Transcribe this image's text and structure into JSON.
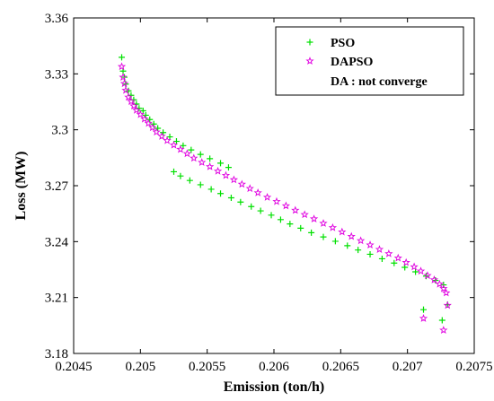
{
  "chart_data": {
    "type": "scatter",
    "xlabel": "Emission (ton/h)",
    "ylabel": "Loss (MW)",
    "xlim": [
      0.2045,
      0.2075
    ],
    "ylim": [
      3.18,
      3.36
    ],
    "xticks": [
      "0.2045",
      "0.205",
      "0.2055",
      "0.206",
      "0.2065",
      "0.207",
      "0.2075"
    ],
    "yticks": [
      "3.18",
      "3.21",
      "3.24",
      "3.27",
      "3.3",
      "3.33",
      "3.36"
    ],
    "grid": false,
    "legend_position": "top-right",
    "legend": [
      {
        "label": "PSO",
        "marker": "plus",
        "color": "#00e000"
      },
      {
        "label": "DAPSO",
        "marker": "star",
        "color": "#e000e0"
      },
      {
        "label": "DA : not converge",
        "marker": "none",
        "color": ""
      }
    ],
    "series": [
      {
        "name": "PSO",
        "marker": "plus",
        "color": "#00e000",
        "points": [
          [
            0.20486,
            3.3389
          ],
          [
            0.20487,
            3.3315
          ],
          [
            0.20488,
            3.3282
          ],
          [
            0.20489,
            3.3245
          ],
          [
            0.20491,
            3.3209
          ],
          [
            0.20493,
            3.3185
          ],
          [
            0.20495,
            3.3161
          ],
          [
            0.20497,
            3.3138
          ],
          [
            0.20499,
            3.3115
          ],
          [
            0.20502,
            3.3102
          ],
          [
            0.20504,
            3.3078
          ],
          [
            0.20507,
            3.3055
          ],
          [
            0.2051,
            3.3031
          ],
          [
            0.20513,
            3.3008
          ],
          [
            0.20517,
            3.2985
          ],
          [
            0.20522,
            3.2962
          ],
          [
            0.20527,
            3.2938
          ],
          [
            0.20532,
            3.2915
          ],
          [
            0.20538,
            3.2892
          ],
          [
            0.20545,
            3.2868
          ],
          [
            0.20552,
            3.2845
          ],
          [
            0.2056,
            3.2821
          ],
          [
            0.20566,
            3.2798
          ],
          [
            0.20525,
            3.2775
          ],
          [
            0.2053,
            3.2752
          ],
          [
            0.20537,
            3.2728
          ],
          [
            0.20545,
            3.2705
          ],
          [
            0.20553,
            3.2681
          ],
          [
            0.2056,
            3.2658
          ],
          [
            0.20568,
            3.2635
          ],
          [
            0.20575,
            3.2612
          ],
          [
            0.20583,
            3.2588
          ],
          [
            0.2059,
            3.2565
          ],
          [
            0.20598,
            3.2542
          ],
          [
            0.20605,
            3.2518
          ],
          [
            0.20612,
            3.2495
          ],
          [
            0.2062,
            3.2472
          ],
          [
            0.20628,
            3.2448
          ],
          [
            0.20637,
            3.2425
          ],
          [
            0.20646,
            3.2402
          ],
          [
            0.20655,
            3.2378
          ],
          [
            0.20663,
            3.2355
          ],
          [
            0.20672,
            3.2332
          ],
          [
            0.20681,
            3.2308
          ],
          [
            0.2069,
            3.2285
          ],
          [
            0.20698,
            3.2262
          ],
          [
            0.20706,
            3.2238
          ],
          [
            0.20714,
            3.2215
          ],
          [
            0.20721,
            3.2192
          ],
          [
            0.20727,
            3.2168
          ],
          [
            0.2073,
            3.2062
          ],
          [
            0.20712,
            3.2035
          ],
          [
            0.20726,
            3.1978
          ]
        ]
      },
      {
        "name": "DAPSO",
        "marker": "star",
        "color": "#e000e0",
        "points": [
          [
            0.20486,
            3.3339
          ],
          [
            0.20487,
            3.3282
          ],
          [
            0.20488,
            3.3248
          ],
          [
            0.20489,
            3.3212
          ],
          [
            0.20491,
            3.3175
          ],
          [
            0.20493,
            3.3152
          ],
          [
            0.20495,
            3.3128
          ],
          [
            0.20497,
            3.3105
          ],
          [
            0.205,
            3.3082
          ],
          [
            0.20503,
            3.3058
          ],
          [
            0.20506,
            3.3035
          ],
          [
            0.20509,
            3.3012
          ],
          [
            0.20512,
            3.2988
          ],
          [
            0.20516,
            3.2965
          ],
          [
            0.2052,
            3.2942
          ],
          [
            0.20525,
            3.2918
          ],
          [
            0.2053,
            3.2895
          ],
          [
            0.20535,
            3.2872
          ],
          [
            0.2054,
            3.2848
          ],
          [
            0.20546,
            3.2825
          ],
          [
            0.20552,
            3.2802
          ],
          [
            0.20558,
            3.2778
          ],
          [
            0.20564,
            3.2755
          ],
          [
            0.2057,
            3.2732
          ],
          [
            0.20576,
            3.2708
          ],
          [
            0.20582,
            3.2685
          ],
          [
            0.20588,
            3.2662
          ],
          [
            0.20595,
            3.2638
          ],
          [
            0.20602,
            3.2615
          ],
          [
            0.20609,
            3.2592
          ],
          [
            0.20616,
            3.2568
          ],
          [
            0.20623,
            3.2545
          ],
          [
            0.2063,
            3.2522
          ],
          [
            0.20637,
            3.2498
          ],
          [
            0.20644,
            3.2475
          ],
          [
            0.20651,
            3.2452
          ],
          [
            0.20658,
            3.2428
          ],
          [
            0.20665,
            3.2405
          ],
          [
            0.20672,
            3.2382
          ],
          [
            0.20679,
            3.2358
          ],
          [
            0.20686,
            3.2335
          ],
          [
            0.20693,
            3.2312
          ],
          [
            0.20699,
            3.2288
          ],
          [
            0.20705,
            3.2265
          ],
          [
            0.2071,
            3.2242
          ],
          [
            0.20715,
            3.2218
          ],
          [
            0.2072,
            3.2195
          ],
          [
            0.20724,
            3.2172
          ],
          [
            0.20727,
            3.2148
          ],
          [
            0.20729,
            3.2125
          ],
          [
            0.2073,
            3.2058
          ],
          [
            0.20712,
            3.1988
          ],
          [
            0.20727,
            3.1925
          ]
        ]
      }
    ]
  }
}
